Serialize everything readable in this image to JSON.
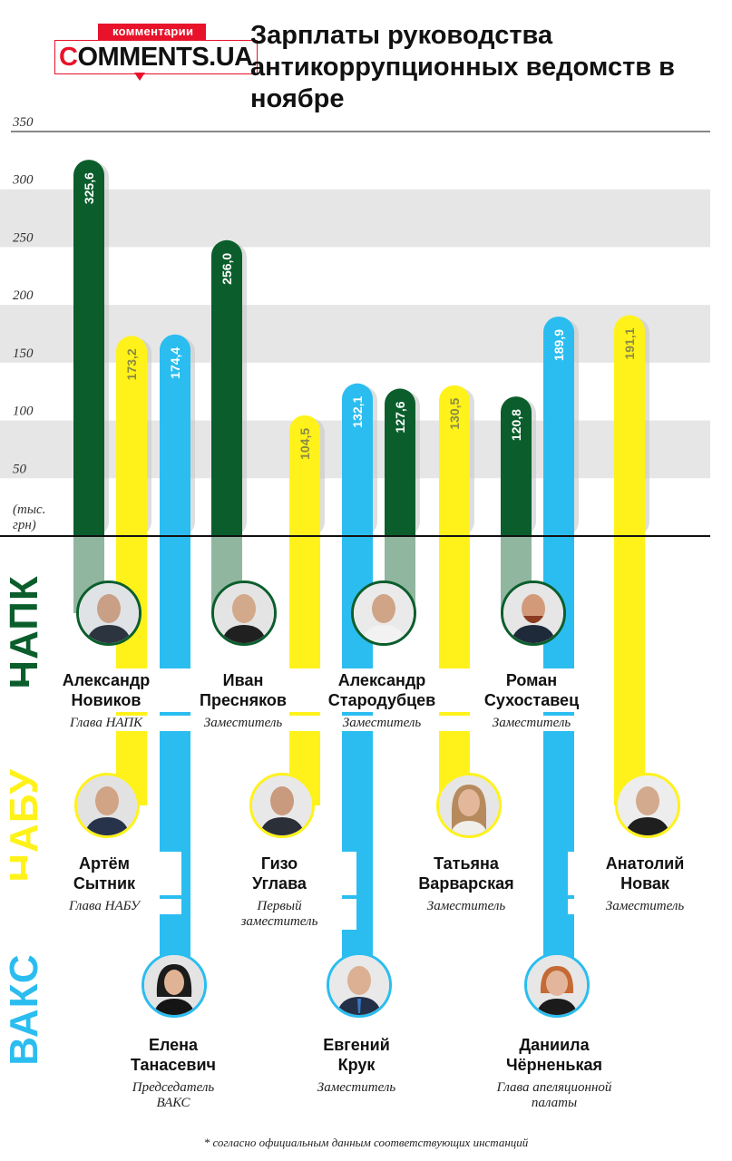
{
  "logo": {
    "top": "комментарии",
    "main_c": "C",
    "main_rest": "OMMENTS.UA"
  },
  "title": "Зарплаты руководства антикоррупционных ведомств в ноябре",
  "colors": {
    "green": "#0b5e2c",
    "yellow": "#fff21a",
    "blue": "#2bbdf0",
    "brand_red": "#e8122a",
    "band": "#e6e6e6"
  },
  "orgs": {
    "napk": "НАПК",
    "nabu": "НАБУ",
    "vaks": "ВАКС"
  },
  "chart_data": {
    "type": "bar",
    "ylim": [
      0,
      350
    ],
    "yticks": [
      50,
      100,
      150,
      200,
      250,
      300,
      350
    ],
    "ytick_labels": [
      "50",
      "100",
      "150",
      "200",
      "250",
      "300",
      "350"
    ],
    "unit_label_line1": "(тыс.",
    "unit_label_line2": "грн)",
    "grid_bands": true,
    "bars": [
      {
        "person": "Александр Новиков",
        "org": "napk",
        "value": 325.6,
        "label": "325,6"
      },
      {
        "person": "Артём Сытник",
        "org": "nabu",
        "value": 173.2,
        "label": "173,2"
      },
      {
        "person": "Елена Танасевич",
        "org": "vaks",
        "value": 174.4,
        "label": "174,4"
      },
      {
        "person": "Иван Пресняков",
        "org": "napk",
        "value": 256.0,
        "label": "256,0"
      },
      {
        "person": "Гизо Углава",
        "org": "nabu",
        "value": 104.5,
        "label": "104,5"
      },
      {
        "person": "Евгений Крук",
        "org": "vaks",
        "value": 132.1,
        "label": "132,1"
      },
      {
        "person": "Александр Стародубцев",
        "org": "napk",
        "value": 127.6,
        "label": "127,6"
      },
      {
        "person": "Татьяна Варварская",
        "org": "nabu",
        "value": 130.5,
        "label": "130,5"
      },
      {
        "person": "Роман Сухоставец",
        "org": "napk",
        "value": 120.8,
        "label": "120,8"
      },
      {
        "person": "Даниила Чёрненькая",
        "org": "vaks",
        "value": 189.9,
        "label": "189,9"
      },
      {
        "person": "Анатолий Новак",
        "org": "nabu",
        "value": 191.1,
        "label": "191,1"
      }
    ]
  },
  "people": {
    "novikov": {
      "name1": "Александр",
      "name2": "Новиков",
      "role": "Глава НАПК"
    },
    "presnyakov": {
      "name1": "Иван",
      "name2": "Пресняков",
      "role": "Заместитель"
    },
    "starodubtsev": {
      "name1": "Александр",
      "name2": "Стародубцев",
      "role": "Заместитель"
    },
    "sukhostavets": {
      "name1": "Роман",
      "name2": "Сухоставец",
      "role": "Заместитель"
    },
    "sytnik": {
      "name1": "Артём",
      "name2": "Сытник",
      "role": "Глава НАБУ"
    },
    "uglava": {
      "name1": "Гизо",
      "name2": "Углава",
      "role1": "Первый",
      "role2": "заместитель"
    },
    "varvarska": {
      "name1": "Татьяна",
      "name2": "Варварская",
      "role": "Заместитель"
    },
    "novak": {
      "name1": "Анатолий",
      "name2": "Новак",
      "role": "Заместитель"
    },
    "tanasevich": {
      "name1": "Елена",
      "name2": "Танасевич",
      "role1": "Председатель",
      "role2": "ВАКС"
    },
    "kruk": {
      "name1": "Евгений",
      "name2": "Крук",
      "role": "Заместитель"
    },
    "chernenka": {
      "name1": "Даниила",
      "name2": "Чёрненькая",
      "role1": "Глава апеляционной",
      "role2": "палаты"
    }
  },
  "footnote": "* согласно официальным данным соответствующих инстанций"
}
